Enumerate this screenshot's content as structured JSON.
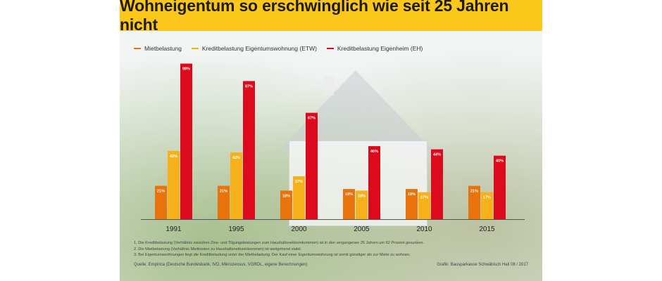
{
  "title": "Wohneigentum so erschwinglich wie seit 25 Jahren nicht",
  "chart_data": {
    "type": "bar",
    "categories": [
      "1991",
      "1995",
      "2000",
      "2005",
      "2010",
      "2015"
    ],
    "series": [
      {
        "name": "Mietbelastung",
        "color": "#e8720c",
        "values": [
          21,
          21,
          18,
          19,
          19,
          21
        ],
        "labels": [
          "21%",
          "21%",
          "18%",
          "19%",
          "19%",
          "21%"
        ]
      },
      {
        "name": "Kreditbelastung Eigentumswohnung (ETW)",
        "color": "#f6b11a",
        "values": [
          43,
          42,
          27,
          18,
          17,
          17
        ],
        "labels": [
          "43%",
          "42%",
          "27%",
          "18%",
          "17%",
          "17%"
        ]
      },
      {
        "name": "Kreditbelastung Eigenheim (EH)",
        "color": "#dd0a1d",
        "values": [
          98,
          87,
          67,
          46,
          44,
          40
        ],
        "labels": [
          "98%",
          "87%",
          "67%",
          "46%",
          "44%",
          "40%"
        ]
      }
    ],
    "ylim": [
      0,
      100
    ],
    "legend_position": "top-left",
    "grid": false
  },
  "notes": [
    "1. Die Kreditbelastung (Verhältnis zwischen Zins- und Tilgungsleistungen zum Haushaltsnettoeinkommen) ist in den vergangenen 25 Jahren um 62 Prozent gesunken.",
    "2. Die Mietbelastung (Verhältnis Mietkosten zu Haushaltsnettoeinkommen) ist weitgehend stabil.",
    "3. Bei Eigentumswohnungen liegt die Kreditbelastung unter der Mietbelastung. Der Kauf einer Eigentumswohnung ist somit günstiger als zur Miete zu wohnen."
  ],
  "source": "Quelle: Empirica (Deutsche Bundesbank, IVD, Mikrozensus, VGRDL, eigene Berechnungen)",
  "credit": "Grafik: Bausparkasse Schwäbisch Hall 08 / 2017"
}
